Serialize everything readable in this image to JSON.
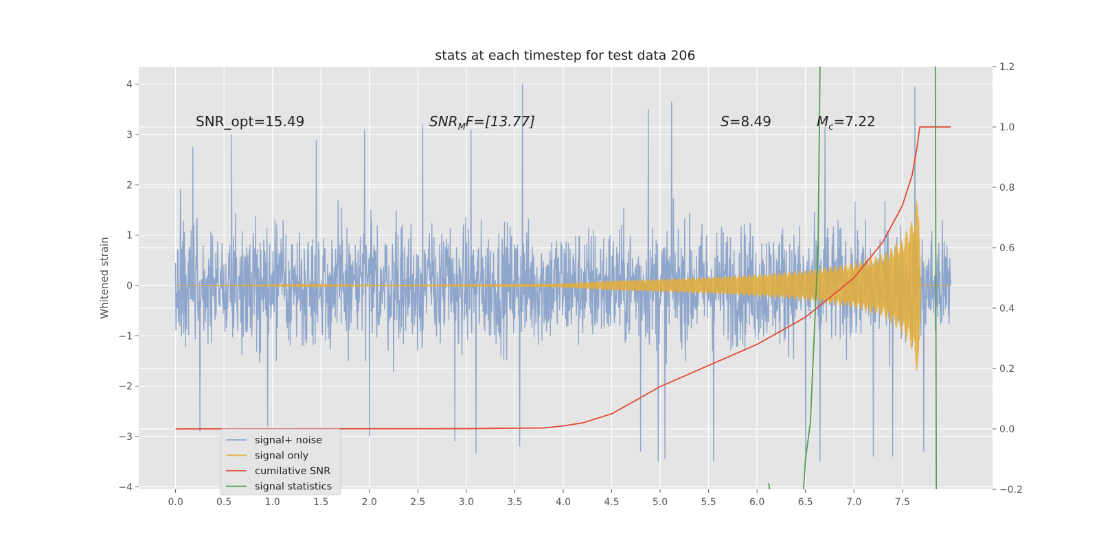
{
  "chart_data": {
    "type": "line",
    "title": "stats at each timestep for test data 206",
    "ylabel": "Whitened strain",
    "xlim": [
      -0.38,
      8.43
    ],
    "ylim": [
      -4.05,
      4.35
    ],
    "y2lim": [
      -0.2,
      1.2
    ],
    "xticks": [
      "0.0",
      "0.5",
      "1.0",
      "1.5",
      "2.0",
      "2.5",
      "3.0",
      "3.5",
      "4.0",
      "4.5",
      "5.0",
      "5.5",
      "6.0",
      "6.5",
      "7.0",
      "7.5"
    ],
    "yticks": [
      "4",
      "3",
      "2",
      "1",
      "0",
      "−1",
      "−2",
      "−3",
      "−4"
    ],
    "y2ticks": [
      "1.2",
      "1.0",
      "0.8",
      "0.6",
      "0.4",
      "0.2",
      "0.0",
      "−0.2"
    ],
    "grid": true,
    "annotations": {
      "snr_opt": "SNR_opt=15.49",
      "snr_mf_sym": "SNR",
      "snr_mf_sub": "M",
      "snr_mf_rest": "F=[13.77]",
      "s_sym": "S",
      "s_val": "=8.49",
      "mc_sym": "M",
      "mc_sub": "c",
      "mc_val": "=7.22"
    },
    "legend_position": "lower left",
    "series": [
      {
        "name": "signal+ noise",
        "color": "#8EA6CC",
        "axis": "left",
        "x_range": [
          0.0,
          8.0
        ],
        "typical_range": [
          -2.0,
          2.0
        ],
        "peaks": [
          [
            0.05,
            1.92
          ],
          [
            0.18,
            2.75
          ],
          [
            0.58,
            3.0
          ],
          [
            1.45,
            2.9
          ],
          [
            1.95,
            3.1
          ],
          [
            2.55,
            3.2
          ],
          [
            3.05,
            3.1
          ],
          [
            3.58,
            4.0
          ],
          [
            4.88,
            3.5
          ],
          [
            5.12,
            3.65
          ],
          [
            6.7,
            3.15
          ],
          [
            7.63,
            3.95
          ]
        ],
        "troughs": [
          [
            0.25,
            -2.9
          ],
          [
            0.95,
            -2.8
          ],
          [
            2.0,
            -3.0
          ],
          [
            2.88,
            -3.1
          ],
          [
            3.1,
            -3.35
          ],
          [
            3.55,
            -3.2
          ],
          [
            4.8,
            -3.3
          ],
          [
            4.98,
            -3.5
          ],
          [
            5.05,
            -3.45
          ],
          [
            5.55,
            -3.5
          ],
          [
            6.5,
            -3.4
          ],
          [
            6.65,
            -3.5
          ],
          [
            7.2,
            -3.4
          ],
          [
            7.4,
            -3.4
          ],
          [
            7.72,
            -3.3
          ]
        ]
      },
      {
        "name": "signal only",
        "color": "#E5AE38",
        "axis": "left",
        "envelope": [
          [
            0.0,
            0.0
          ],
          [
            3.8,
            0.03
          ],
          [
            4.0,
            0.04
          ],
          [
            4.5,
            0.1
          ],
          [
            5.0,
            0.13
          ],
          [
            5.5,
            0.17
          ],
          [
            6.0,
            0.22
          ],
          [
            6.5,
            0.3
          ],
          [
            7.0,
            0.45
          ],
          [
            7.3,
            0.62
          ],
          [
            7.5,
            0.95
          ],
          [
            7.6,
            1.3
          ],
          [
            7.67,
            1.9
          ],
          [
            7.69,
            0.0
          ],
          [
            8.0,
            0.0
          ]
        ]
      },
      {
        "name": "cumilative SNR",
        "color": "#E24A33",
        "axis": "right",
        "x": [
          0.0,
          3.0,
          3.8,
          4.0,
          4.2,
          4.5,
          5.0,
          5.5,
          6.0,
          6.5,
          7.0,
          7.3,
          7.5,
          7.6,
          7.65,
          7.68,
          8.0
        ],
        "y": [
          0.0,
          0.001,
          0.003,
          0.01,
          0.02,
          0.05,
          0.14,
          0.21,
          0.28,
          0.37,
          0.5,
          0.62,
          0.74,
          0.84,
          0.93,
          1.0,
          1.0
        ]
      },
      {
        "name": "signal statistics",
        "color": "#348ABD",
        "draw_color": "#4E9F50",
        "axis": "right",
        "segments": [
          [
            [
              6.12,
              -0.18
            ],
            [
              6.13,
              -0.2
            ]
          ],
          [
            [
              6.48,
              -0.2
            ],
            [
              6.5,
              -0.1
            ],
            [
              6.55,
              0.02
            ],
            [
              6.63,
              0.6
            ],
            [
              6.65,
              1.2
            ]
          ],
          [
            [
              7.84,
              1.2
            ],
            [
              7.85,
              -0.2
            ]
          ]
        ]
      }
    ]
  }
}
